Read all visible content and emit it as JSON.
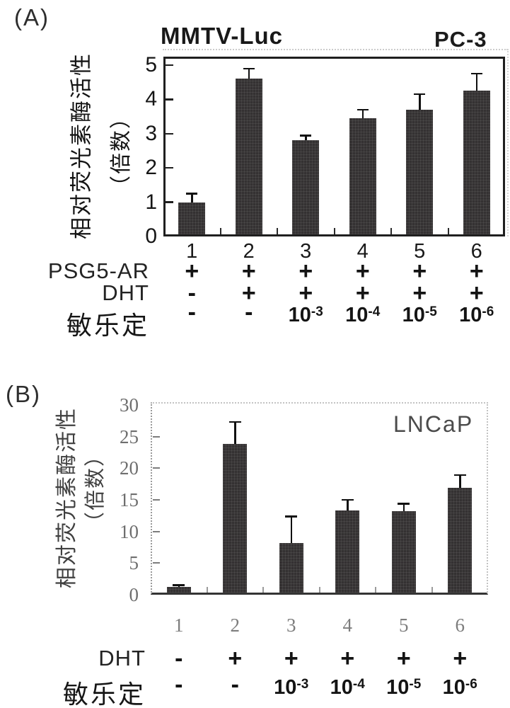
{
  "figure": {
    "panel_a_label": "(A)",
    "panel_b_label": "(B)"
  },
  "chart_data": [
    {
      "type": "bar",
      "panel": "A",
      "title": "MMTV-Luc",
      "cell_line": "PC-3",
      "ylabel": "相对荧光素酶活性（倍数）",
      "ylabel_lines": [
        "相对荧光素酶活性",
        "（倍数）"
      ],
      "ylim": [
        0,
        5
      ],
      "yticks": [
        0,
        1,
        2,
        3,
        4,
        5
      ],
      "categories": [
        "1",
        "2",
        "3",
        "4",
        "5",
        "6"
      ],
      "values": [
        1.0,
        4.6,
        2.8,
        3.45,
        3.7,
        4.25
      ],
      "errors_plus": [
        0.25,
        0.3,
        0.15,
        0.25,
        0.45,
        0.5
      ],
      "grid": "off",
      "legend": "none",
      "conditions": [
        {
          "label": "PSG5-AR",
          "values": [
            "+",
            "+",
            "+",
            "+",
            "+",
            "+"
          ]
        },
        {
          "label": "DHT",
          "values": [
            "-",
            "+",
            "+",
            "+",
            "+",
            "+"
          ]
        },
        {
          "label": "敏乐定",
          "values": [
            "-",
            "-",
            "10^-3",
            "10^-4",
            "10^-5",
            "10^-6"
          ]
        }
      ]
    },
    {
      "type": "bar",
      "panel": "B",
      "title": "",
      "cell_line": "LNCaP",
      "ylabel": "相对荧光素酶活性（倍数）",
      "ylabel_lines": [
        "相对荧光素酶活性",
        "（倍数）"
      ],
      "ylim": [
        0,
        30
      ],
      "yticks": [
        0,
        5,
        10,
        15,
        20,
        25,
        30
      ],
      "categories": [
        "1",
        "2",
        "3",
        "4",
        "5",
        "6"
      ],
      "values": [
        1.2,
        23.8,
        8.2,
        13.3,
        13.2,
        16.9
      ],
      "errors_plus": [
        0.3,
        3.5,
        4.2,
        1.7,
        1.2,
        2.0
      ],
      "grid": "off",
      "legend": "none",
      "conditions": [
        {
          "label": "DHT",
          "values": [
            "-",
            "+",
            "+",
            "+",
            "+",
            "+"
          ]
        },
        {
          "label": "敏乐定",
          "values": [
            "-",
            "-",
            "10^-3",
            "10^-4",
            "10^-5",
            "10^-6"
          ]
        }
      ]
    }
  ]
}
